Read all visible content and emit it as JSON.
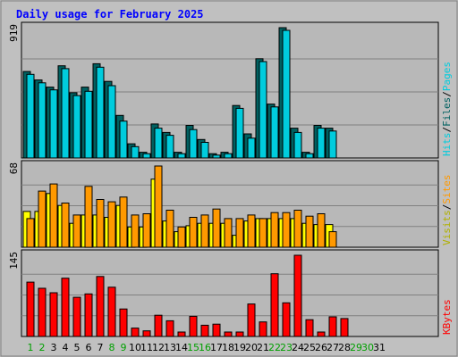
{
  "colors": {
    "background": "#c0c0c0",
    "panel": "#b8b8b8",
    "title": "#0000ff",
    "hits_front": "#00ccdd",
    "hits_back": "#006060",
    "files_front": "#00ccdd",
    "files_back": "#006060",
    "visits_front": "#ffff00",
    "visits_back": "#b0b000",
    "sites_front": "#ff9900",
    "sites_back": "#b05000",
    "kbytes_front": "#ff0000",
    "kbytes_back": "#800000",
    "weekday_label": "#008000",
    "weekend_label": "#00a000",
    "axis_label": "#000000"
  },
  "chart_data": {
    "type": "bar",
    "title": "Daily usage for February 2025",
    "categories": [
      "1",
      "2",
      "3",
      "4",
      "5",
      "6",
      "7",
      "8",
      "9",
      "10",
      "11",
      "12",
      "13",
      "14",
      "15",
      "16",
      "17",
      "18",
      "19",
      "20",
      "21",
      "22",
      "23",
      "24",
      "25",
      "26",
      "27",
      "28",
      "29",
      "30",
      "31"
    ],
    "weekend_days": [
      "1",
      "2",
      "8",
      "9",
      "15",
      "16",
      "22",
      "23",
      "29",
      "30"
    ],
    "panels": [
      {
        "key": "top",
        "max_label": "919",
        "ylim": [
          0,
          919
        ],
        "axis_labels": [
          {
            "text": "Hits",
            "color_key": "hits_front"
          },
          {
            "text": "/",
            "color_key": "axis_label"
          },
          {
            "text": "Files",
            "color_key": "files_back"
          },
          {
            "text": "/",
            "color_key": "axis_label"
          },
          {
            "text": "Pages",
            "color_key": "hits_front"
          }
        ],
        "series": [
          {
            "name": "Hits",
            "color_key": "hits_back",
            "values": [
              610,
              550,
              500,
              650,
              460,
              500,
              665,
              540,
              300,
              100,
              40,
              240,
              180,
              40,
              230,
              130,
              30,
              40,
              370,
              170,
              700,
              380,
              919,
              210,
              40,
              230,
              210,
              null,
              null,
              null,
              null
            ]
          },
          {
            "name": "Files",
            "color_key": "hits_front",
            "values": [
              590,
              530,
              480,
              630,
              440,
              470,
              640,
              510,
              260,
              80,
              30,
              210,
              160,
              30,
              200,
              110,
              20,
              30,
              350,
              140,
              680,
              360,
              900,
              180,
              30,
              210,
              190,
              null,
              null,
              null,
              null
            ]
          }
        ]
      },
      {
        "key": "middle",
        "max_label": "68",
        "ylim": [
          0,
          68
        ],
        "axis_labels": [
          {
            "text": "Visits",
            "color_key": "visits_back"
          },
          {
            "text": "/",
            "color_key": "axis_label"
          },
          {
            "text": "Sites",
            "color_key": "sites_front"
          }
        ],
        "series": [
          {
            "name": "Visits",
            "color_key": "visits_front",
            "values": [
              30,
              30,
              45,
              35,
              20,
              27,
              27,
              25,
              35,
              17,
              17,
              57,
              22,
              13,
              18,
              20,
              20,
              20,
              10,
              22,
              24,
              24,
              24,
              24,
              20,
              19,
              19,
              null,
              null,
              null,
              null
            ]
          },
          {
            "name": "Sites",
            "color_key": "sites_front",
            "values": [
              24,
              47,
              53,
              37,
              27,
              51,
              40,
              38,
              42,
              27,
              28,
              68,
              31,
              17,
              25,
              27,
              32,
              24,
              24,
              27,
              24,
              29,
              29,
              31,
              26,
              28,
              13,
              null,
              null,
              null,
              null
            ]
          }
        ]
      },
      {
        "key": "bottom",
        "max_label": "145",
        "ylim": [
          0,
          145
        ],
        "axis_labels": [
          {
            "text": "KBytes",
            "color_key": "kbytes_front"
          }
        ],
        "series": [
          {
            "name": "KBytes",
            "color_key": "kbytes_front",
            "values": [
              97,
              86,
              78,
              104,
              70,
              76,
              107,
              88,
              49,
              15,
              10,
              38,
              28,
              8,
              36,
              20,
              22,
              8,
              8,
              58,
              26,
              112,
              60,
              145,
              30,
              8,
              35,
              32,
              null,
              null,
              null
            ]
          }
        ]
      }
    ]
  }
}
